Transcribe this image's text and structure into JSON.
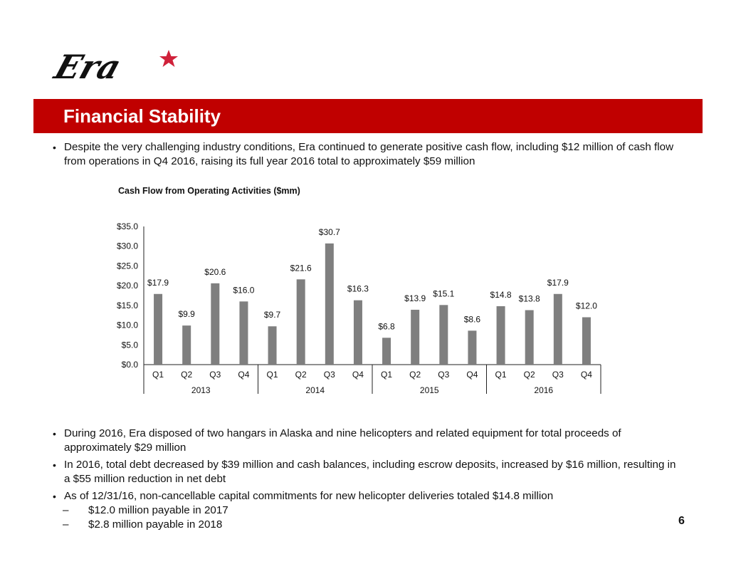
{
  "logo": {
    "text": "Era",
    "star_color": "#d0213a"
  },
  "header": {
    "title": "Financial Stability",
    "band_color": "#c00000"
  },
  "top_bullets": [
    "Despite the very challenging industry conditions, Era continued to generate positive cash flow, including $12 million of cash flow from operations in Q4 2016, raising its full year 2016 total to approximately $59 million"
  ],
  "bottom_bullets": [
    {
      "text": "During 2016, Era disposed of two hangars in Alaska and nine helicopters and related equipment for total proceeds of approximately $29 million",
      "subs": []
    },
    {
      "text": "In 2016, total debt decreased by $39 million and cash balances, including escrow deposits, increased by $16 million, resulting in a $55 million reduction in net debt",
      "subs": []
    },
    {
      "text": "As of 12/31/16, non-cancellable capital commitments for new helicopter deliveries totaled $14.8 million",
      "subs": [
        "$12.0 million payable in 2017",
        "$2.8 million payable in 2018"
      ]
    }
  ],
  "page_number": "6",
  "chart_data": {
    "type": "bar",
    "title": "Cash Flow from Operating Activities ($mm)",
    "xlabel": "",
    "ylabel": "",
    "ylim": [
      0,
      35
    ],
    "yticks": [
      0,
      5,
      10,
      15,
      20,
      25,
      30,
      35
    ],
    "ytick_labels": [
      "$0.0",
      "$5.0",
      "$10.0",
      "$15.0",
      "$20.0",
      "$25.0",
      "$30.0",
      "$35.0"
    ],
    "grid": false,
    "bar_color": "#7f7f7f",
    "categories": [
      "Q1",
      "Q2",
      "Q3",
      "Q4",
      "Q1",
      "Q2",
      "Q3",
      "Q4",
      "Q1",
      "Q2",
      "Q3",
      "Q4",
      "Q1",
      "Q2",
      "Q3",
      "Q4"
    ],
    "groups": [
      {
        "label": "2013",
        "count": 4
      },
      {
        "label": "2014",
        "count": 4
      },
      {
        "label": "2015",
        "count": 4
      },
      {
        "label": "2016",
        "count": 4
      }
    ],
    "values": [
      17.9,
      9.9,
      20.6,
      16.0,
      9.7,
      21.6,
      30.7,
      16.3,
      6.8,
      13.9,
      15.1,
      8.6,
      14.8,
      13.8,
      17.9,
      12.0
    ],
    "data_labels": [
      "$17.9",
      "$9.9",
      "$20.6",
      "$16.0",
      "$9.7",
      "$21.6",
      "$30.7",
      "$16.3",
      "$6.8",
      "$13.9",
      "$15.1",
      "$8.6",
      "$14.8",
      "$13.8",
      "$17.9",
      "$12.0"
    ]
  }
}
